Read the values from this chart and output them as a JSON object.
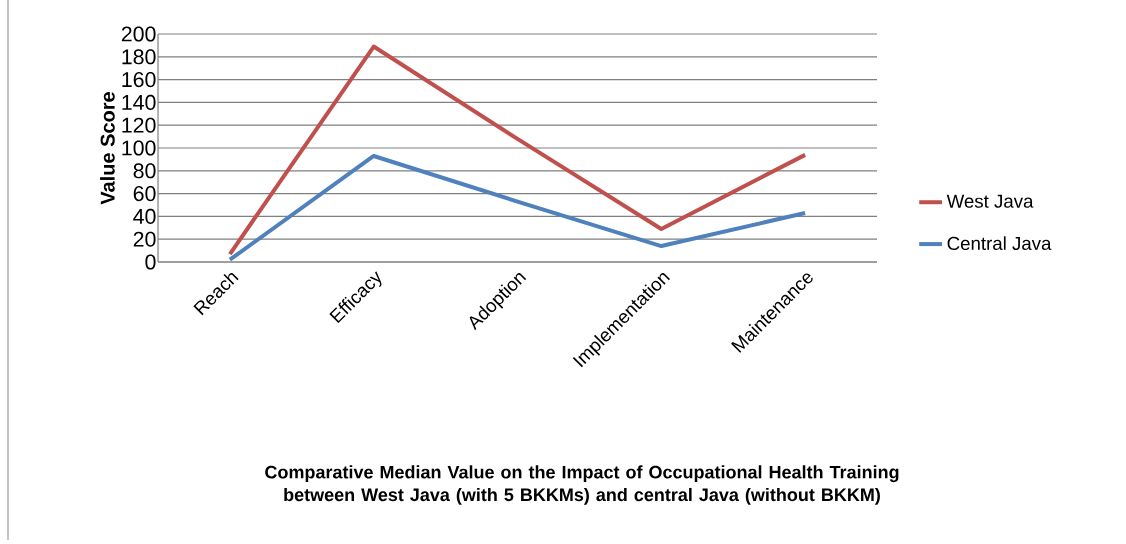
{
  "chart_data": {
    "type": "line",
    "title": "Comparative Median Value on the Impact of Occupational Health Training between West Java (with 5 BKKMs) and central Java (without BKKM)",
    "ylabel": "Value Score",
    "categories": [
      "Reach",
      "Efficacy",
      "Adoption",
      "Implementation",
      "Maintenance"
    ],
    "series": [
      {
        "name": "West Java",
        "color": "#c0504d",
        "values": [
          7,
          189,
          108,
          29,
          94
        ]
      },
      {
        "name": "Central Java",
        "color": "#4f81bd",
        "values": [
          2,
          93,
          53,
          14,
          43
        ]
      }
    ],
    "ylim": [
      0,
      200
    ],
    "yticks": [
      0,
      20,
      40,
      60,
      80,
      100,
      120,
      140,
      160,
      180,
      200
    ],
    "grid": "y",
    "legend": "right",
    "marker": "none"
  }
}
